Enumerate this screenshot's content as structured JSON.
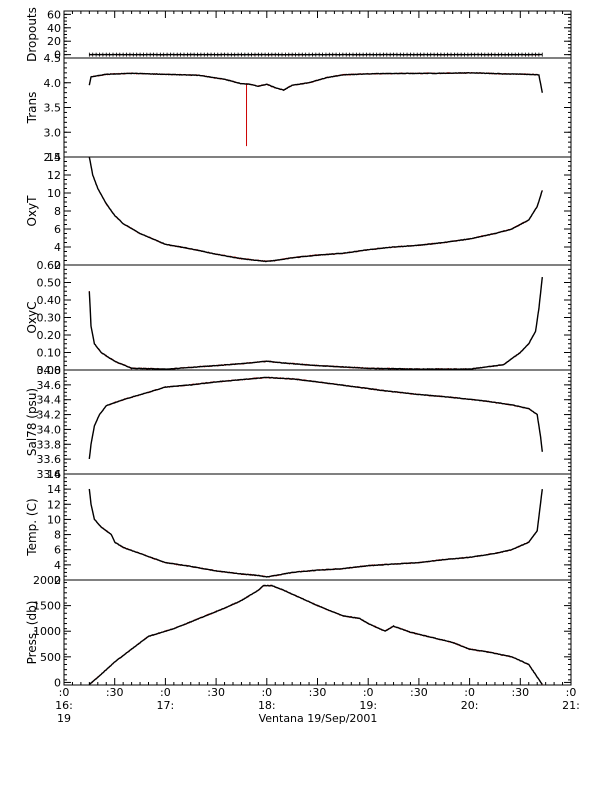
{
  "chart_data": {
    "type": "line",
    "title": "",
    "xlabel": "Ventana 19/Sep/2001",
    "x_ticks": [
      {
        "t": 0,
        "l1": ":0",
        "l2": "16:",
        "l3": "19"
      },
      {
        "t": 30,
        "l1": ":30",
        "l2": "",
        "l3": ""
      },
      {
        "t": 60,
        "l1": ":0",
        "l2": "17:",
        "l3": ""
      },
      {
        "t": 90,
        "l1": ":30",
        "l2": "",
        "l3": ""
      },
      {
        "t": 120,
        "l1": ":0",
        "l2": "18:",
        "l3": ""
      },
      {
        "t": 150,
        "l1": ":30",
        "l2": "",
        "l3": ""
      },
      {
        "t": 180,
        "l1": ":0",
        "l2": "19:",
        "l3": ""
      },
      {
        "t": 210,
        "l1": ":30",
        "l2": "",
        "l3": ""
      },
      {
        "t": 240,
        "l1": ":0",
        "l2": "20:",
        "l3": ""
      },
      {
        "t": 270,
        "l1": ":30",
        "l2": "",
        "l3": ""
      },
      {
        "t": 300,
        "l1": ":0",
        "l2": "21:",
        "l3": ""
      }
    ],
    "x_range_minutes": [
      0,
      300
    ],
    "grid": false,
    "panels": [
      {
        "ylabel": "Dropouts",
        "ylim": [
          -5,
          65
        ],
        "ticks": [
          {
            "v": 0,
            "l": "0"
          },
          {
            "v": 20,
            "l": "20"
          },
          {
            "v": 40,
            "l": "40"
          },
          {
            "v": 60,
            "l": "60"
          }
        ],
        "minor": 5,
        "raw_color": "#cc0000",
        "spike": null,
        "series": [
          [
            15,
            0
          ],
          [
            283,
            0
          ]
        ]
      },
      {
        "ylabel": "Trans",
        "ylim": [
          2.5,
          4.5
        ],
        "ticks": [
          {
            "v": 2.5,
            "l": "2.5"
          },
          {
            "v": 3.0,
            "l": "3.0"
          },
          {
            "v": 3.5,
            "l": "3.5"
          },
          {
            "v": 4.0,
            "l": "4.0"
          },
          {
            "v": 4.5,
            "l": "4.5"
          }
        ],
        "minor": 0.1,
        "raw_color": "#cc0000",
        "spike": {
          "t": 108,
          "v": 2.72
        },
        "series": [
          [
            15,
            3.95
          ],
          [
            16,
            4.12
          ],
          [
            25,
            4.17
          ],
          [
            40,
            4.19
          ],
          [
            60,
            4.17
          ],
          [
            80,
            4.15
          ],
          [
            95,
            4.07
          ],
          [
            105,
            3.98
          ],
          [
            110,
            3.97
          ],
          [
            115,
            3.93
          ],
          [
            120,
            3.97
          ],
          [
            125,
            3.9
          ],
          [
            130,
            3.85
          ],
          [
            135,
            3.95
          ],
          [
            145,
            4.0
          ],
          [
            155,
            4.1
          ],
          [
            165,
            4.16
          ],
          [
            180,
            4.18
          ],
          [
            200,
            4.19
          ],
          [
            220,
            4.19
          ],
          [
            240,
            4.2
          ],
          [
            260,
            4.18
          ],
          [
            275,
            4.17
          ],
          [
            281,
            4.16
          ],
          [
            283,
            3.8
          ]
        ]
      },
      {
        "ylabel": "OxyT",
        "ylim": [
          2,
          14
        ],
        "ticks": [
          {
            "v": 2,
            "l": "2"
          },
          {
            "v": 4,
            "l": "4"
          },
          {
            "v": 6,
            "l": "6"
          },
          {
            "v": 8,
            "l": "8"
          },
          {
            "v": 10,
            "l": "10"
          },
          {
            "v": 12,
            "l": "12"
          },
          {
            "v": 14,
            "l": "14"
          }
        ],
        "minor": 0.5,
        "raw_color": "#cc0000",
        "spike": null,
        "series": [
          [
            15,
            14.0
          ],
          [
            17,
            12.0
          ],
          [
            20,
            10.5
          ],
          [
            25,
            8.8
          ],
          [
            30,
            7.5
          ],
          [
            35,
            6.6
          ],
          [
            45,
            5.5
          ],
          [
            60,
            4.3
          ],
          [
            75,
            3.8
          ],
          [
            90,
            3.2
          ],
          [
            105,
            2.7
          ],
          [
            115,
            2.5
          ],
          [
            120,
            2.4
          ],
          [
            125,
            2.5
          ],
          [
            135,
            2.8
          ],
          [
            150,
            3.1
          ],
          [
            165,
            3.3
          ],
          [
            180,
            3.7
          ],
          [
            195,
            4.0
          ],
          [
            210,
            4.2
          ],
          [
            225,
            4.5
          ],
          [
            240,
            4.9
          ],
          [
            255,
            5.5
          ],
          [
            265,
            6.0
          ],
          [
            275,
            7.0
          ],
          [
            280,
            8.5
          ],
          [
            283,
            10.3
          ]
        ]
      },
      {
        "ylabel": "OxyC",
        "ylim": [
          0,
          0.6
        ],
        "ticks": [
          {
            "v": 0,
            "l": "0.00"
          },
          {
            "v": 0.1,
            "l": "0.10"
          },
          {
            "v": 0.2,
            "l": "0.20"
          },
          {
            "v": 0.3,
            "l": "0.30"
          },
          {
            "v": 0.4,
            "l": "0.40"
          },
          {
            "v": 0.5,
            "l": "0.50"
          },
          {
            "v": 0.6,
            "l": "0.60"
          }
        ],
        "minor": 0.025,
        "raw_color": "#cc0000",
        "spike": null,
        "series": [
          [
            15,
            0.45
          ],
          [
            16,
            0.25
          ],
          [
            18,
            0.15
          ],
          [
            22,
            0.1
          ],
          [
            30,
            0.05
          ],
          [
            40,
            0.01
          ],
          [
            60,
            0.005
          ],
          [
            90,
            0.025
          ],
          [
            110,
            0.04
          ],
          [
            120,
            0.05
          ],
          [
            130,
            0.04
          ],
          [
            150,
            0.025
          ],
          [
            180,
            0.01
          ],
          [
            210,
            0.005
          ],
          [
            240,
            0.005
          ],
          [
            260,
            0.03
          ],
          [
            270,
            0.1
          ],
          [
            275,
            0.15
          ],
          [
            279,
            0.22
          ],
          [
            281,
            0.35
          ],
          [
            283,
            0.53
          ]
        ]
      },
      {
        "ylabel": "Sal78 (psu)",
        "ylim": [
          33.4,
          34.8
        ],
        "ticks": [
          {
            "v": 33.4,
            "l": "33.4"
          },
          {
            "v": 33.6,
            "l": "33.6"
          },
          {
            "v": 33.8,
            "l": "33.8"
          },
          {
            "v": 34.0,
            "l": "34.0"
          },
          {
            "v": 34.2,
            "l": "34.2"
          },
          {
            "v": 34.4,
            "l": "34.4"
          },
          {
            "v": 34.6,
            "l": "34.6"
          },
          {
            "v": 34.8,
            "l": "34.8"
          }
        ],
        "minor": 0.05,
        "raw_color": "#cc0000",
        "spike": null,
        "series": [
          [
            15,
            33.6
          ],
          [
            16,
            33.8
          ],
          [
            18,
            34.05
          ],
          [
            21,
            34.2
          ],
          [
            25,
            34.32
          ],
          [
            35,
            34.4
          ],
          [
            50,
            34.5
          ],
          [
            60,
            34.57
          ],
          [
            75,
            34.6
          ],
          [
            90,
            34.64
          ],
          [
            105,
            34.67
          ],
          [
            120,
            34.7
          ],
          [
            135,
            34.68
          ],
          [
            150,
            34.64
          ],
          [
            170,
            34.58
          ],
          [
            190,
            34.52
          ],
          [
            210,
            34.47
          ],
          [
            230,
            34.43
          ],
          [
            250,
            34.38
          ],
          [
            265,
            34.33
          ],
          [
            275,
            34.28
          ],
          [
            280,
            34.2
          ],
          [
            282,
            33.9
          ],
          [
            283,
            33.7
          ]
        ]
      },
      {
        "ylabel": "Temp. (C)",
        "ylim": [
          2,
          16
        ],
        "ticks": [
          {
            "v": 2,
            "l": "2"
          },
          {
            "v": 4,
            "l": "4"
          },
          {
            "v": 6,
            "l": "6"
          },
          {
            "v": 8,
            "l": "8"
          },
          {
            "v": 10,
            "l": "10"
          },
          {
            "v": 12,
            "l": "12"
          },
          {
            "v": 14,
            "l": "14"
          },
          {
            "v": 16,
            "l": "16"
          }
        ],
        "minor": 0.5,
        "raw_color": "#cc0000",
        "spike": null,
        "series": [
          [
            15,
            14.0
          ],
          [
            16,
            12.0
          ],
          [
            18,
            10.0
          ],
          [
            22,
            9.0
          ],
          [
            28,
            8.0
          ],
          [
            30,
            7.0
          ],
          [
            35,
            6.3
          ],
          [
            45,
            5.5
          ],
          [
            60,
            4.3
          ],
          [
            75,
            3.8
          ],
          [
            90,
            3.2
          ],
          [
            105,
            2.8
          ],
          [
            115,
            2.6
          ],
          [
            120,
            2.4
          ],
          [
            125,
            2.6
          ],
          [
            135,
            3.0
          ],
          [
            150,
            3.3
          ],
          [
            165,
            3.5
          ],
          [
            180,
            3.9
          ],
          [
            195,
            4.1
          ],
          [
            210,
            4.3
          ],
          [
            225,
            4.7
          ],
          [
            240,
            5.0
          ],
          [
            255,
            5.5
          ],
          [
            265,
            6.0
          ],
          [
            275,
            7.0
          ],
          [
            280,
            8.5
          ],
          [
            283,
            14.0
          ]
        ]
      },
      {
        "ylabel": "Press. (db)",
        "ylim": [
          -50,
          2000
        ],
        "ticks": [
          {
            "v": 0,
            "l": "0"
          },
          {
            "v": 500,
            "l": "500"
          },
          {
            "v": 1000,
            "l": "1000"
          },
          {
            "v": 1500,
            "l": "1500"
          },
          {
            "v": 2000,
            "l": "2000"
          }
        ],
        "minor": 100,
        "raw_color": "#cc0000",
        "spike": null,
        "series": [
          [
            15,
            -40
          ],
          [
            20,
            100
          ],
          [
            30,
            400
          ],
          [
            40,
            650
          ],
          [
            50,
            900
          ],
          [
            60,
            1000
          ],
          [
            65,
            1050
          ],
          [
            80,
            1250
          ],
          [
            95,
            1450
          ],
          [
            105,
            1600
          ],
          [
            115,
            1800
          ],
          [
            118,
            1890
          ],
          [
            123,
            1890
          ],
          [
            130,
            1800
          ],
          [
            140,
            1650
          ],
          [
            150,
            1500
          ],
          [
            165,
            1300
          ],
          [
            175,
            1250
          ],
          [
            180,
            1150
          ],
          [
            190,
            1000
          ],
          [
            195,
            1100
          ],
          [
            205,
            980
          ],
          [
            215,
            900
          ],
          [
            230,
            780
          ],
          [
            240,
            650
          ],
          [
            250,
            600
          ],
          [
            265,
            500
          ],
          [
            275,
            350
          ],
          [
            283,
            -40
          ]
        ]
      }
    ]
  }
}
